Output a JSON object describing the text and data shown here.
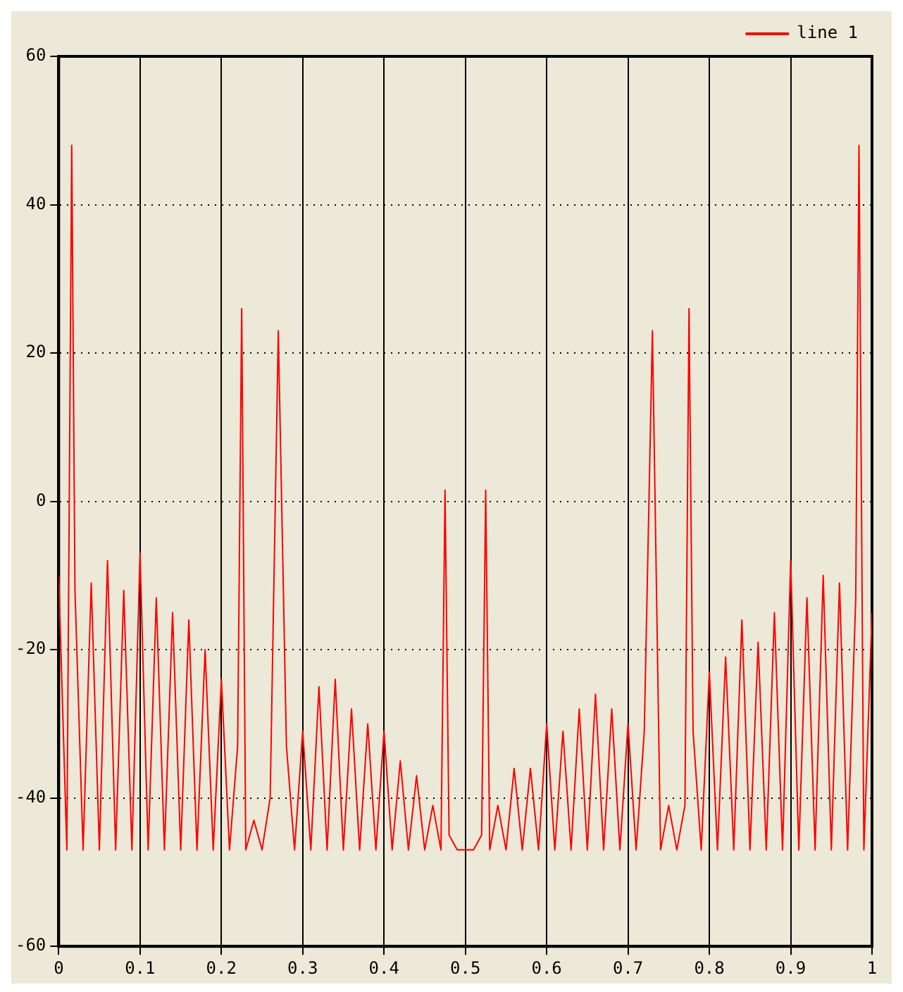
{
  "chart_data": {
    "type": "line",
    "x": [
      0,
      0.01,
      0.016,
      0.02,
      0.03,
      0.04,
      0.05,
      0.06,
      0.07,
      0.08,
      0.09,
      0.1,
      0.11,
      0.12,
      0.13,
      0.14,
      0.15,
      0.16,
      0.17,
      0.18,
      0.19,
      0.2,
      0.21,
      0.22,
      0.225,
      0.23,
      0.24,
      0.25,
      0.26,
      0.27,
      0.28,
      0.29,
      0.3,
      0.31,
      0.32,
      0.33,
      0.34,
      0.35,
      0.36,
      0.37,
      0.38,
      0.39,
      0.4,
      0.41,
      0.42,
      0.43,
      0.44,
      0.45,
      0.46,
      0.47,
      0.475,
      0.48,
      0.49,
      0.5,
      0.51,
      0.52,
      0.525,
      0.53,
      0.54,
      0.55,
      0.56,
      0.57,
      0.58,
      0.59,
      0.6,
      0.61,
      0.62,
      0.63,
      0.64,
      0.65,
      0.66,
      0.67,
      0.68,
      0.69,
      0.7,
      0.71,
      0.72,
      0.73,
      0.74,
      0.75,
      0.76,
      0.77,
      0.775,
      0.78,
      0.79,
      0.8,
      0.81,
      0.82,
      0.83,
      0.84,
      0.85,
      0.86,
      0.87,
      0.88,
      0.89,
      0.9,
      0.91,
      0.92,
      0.93,
      0.94,
      0.95,
      0.96,
      0.97,
      0.98,
      0.984,
      0.99,
      1
    ],
    "series": [
      {
        "name": "line 1",
        "color": "#ff0000",
        "values": [
          -10,
          -47,
          48,
          -12,
          -47,
          -11,
          -47,
          -8,
          -47,
          -12,
          -47,
          -7,
          -47,
          -13,
          -47,
          -15,
          -47,
          -16,
          -47,
          -20,
          -47,
          -24,
          -47,
          -33,
          26,
          -47,
          -43,
          -47,
          -40,
          23,
          -33,
          -47,
          -31,
          -47,
          -25,
          -47,
          -24,
          -47,
          -28,
          -47,
          -30,
          -47,
          -31,
          -47,
          -35,
          -47,
          -37,
          -47,
          -41,
          -47,
          1.5,
          -45,
          -47,
          -47,
          -47,
          -45,
          1.5,
          -47,
          -41,
          -47,
          -36,
          -47,
          -36,
          -47,
          -30,
          -47,
          -31,
          -47,
          -28,
          -47,
          -26,
          -47,
          -28,
          -47,
          -30,
          -47,
          -31,
          23,
          -47,
          -41,
          -47,
          -41,
          26,
          -31,
          -47,
          -23,
          -47,
          -21,
          -47,
          -16,
          -47,
          -19,
          -47,
          -15,
          -47,
          -8,
          -47,
          -13,
          -47,
          -10,
          -47,
          -11,
          -47,
          -13,
          48,
          -47,
          -15
        ]
      }
    ],
    "xlim": [
      0,
      1
    ],
    "xticks": [
      0,
      0.1,
      0.2,
      0.3,
      0.4,
      0.5,
      0.6,
      0.7,
      0.8,
      0.9,
      1
    ],
    "ylim": [
      -60,
      60
    ],
    "yticks": [
      -60,
      -40,
      -20,
      0,
      20,
      40,
      60
    ],
    "grid": true,
    "legend": "top right",
    "marker": "none",
    "line_style": "solid"
  }
}
